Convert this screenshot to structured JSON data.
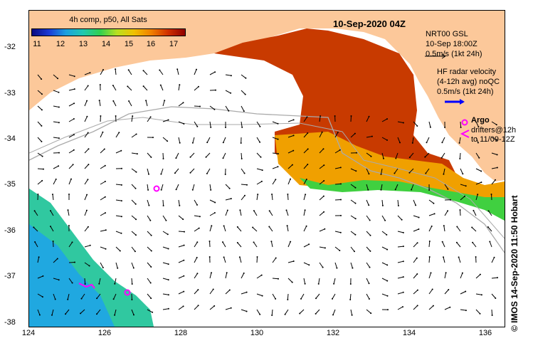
{
  "header": {
    "date_title": "10-Sep-2020 04Z",
    "colorbar_title": "4h comp, p50, All Sats",
    "colorbar_ticks": [
      "11",
      "12",
      "13",
      "14",
      "15",
      "16",
      "17"
    ]
  },
  "legend": {
    "nrt_line1": "NRT00 GSL",
    "nrt_line2": "10-Sep 18:00Z",
    "nrt_line3": "0.5m/s (1kt 24h)",
    "hf_line1": "HF radar velocity",
    "hf_line2": "(4-12h avg) noQC",
    "hf_line3": "0.5m/s (1kt 24h)",
    "argo_label": "Argo",
    "drifter_line1": "drifters@12h",
    "drifter_line2": "to 11/09-12Z"
  },
  "axes": {
    "y_ticks": [
      "-32",
      "-33",
      "-34",
      "-35",
      "-36",
      "-37",
      "-38"
    ],
    "x_ticks": [
      "124",
      "126",
      "128",
      "130",
      "132",
      "134",
      "136"
    ]
  },
  "credit": "© IMOS 14-Sep-2020 11:50 Hobart",
  "colors": {
    "land": "#fcc89a",
    "arrow": "#000000",
    "argo": "#ff00ff",
    "hf_radar": "#0000ff",
    "contour": "#aaaaaa"
  },
  "icons": {
    "argo_marker": "circle",
    "drifter_marker": "triangle-left"
  }
}
